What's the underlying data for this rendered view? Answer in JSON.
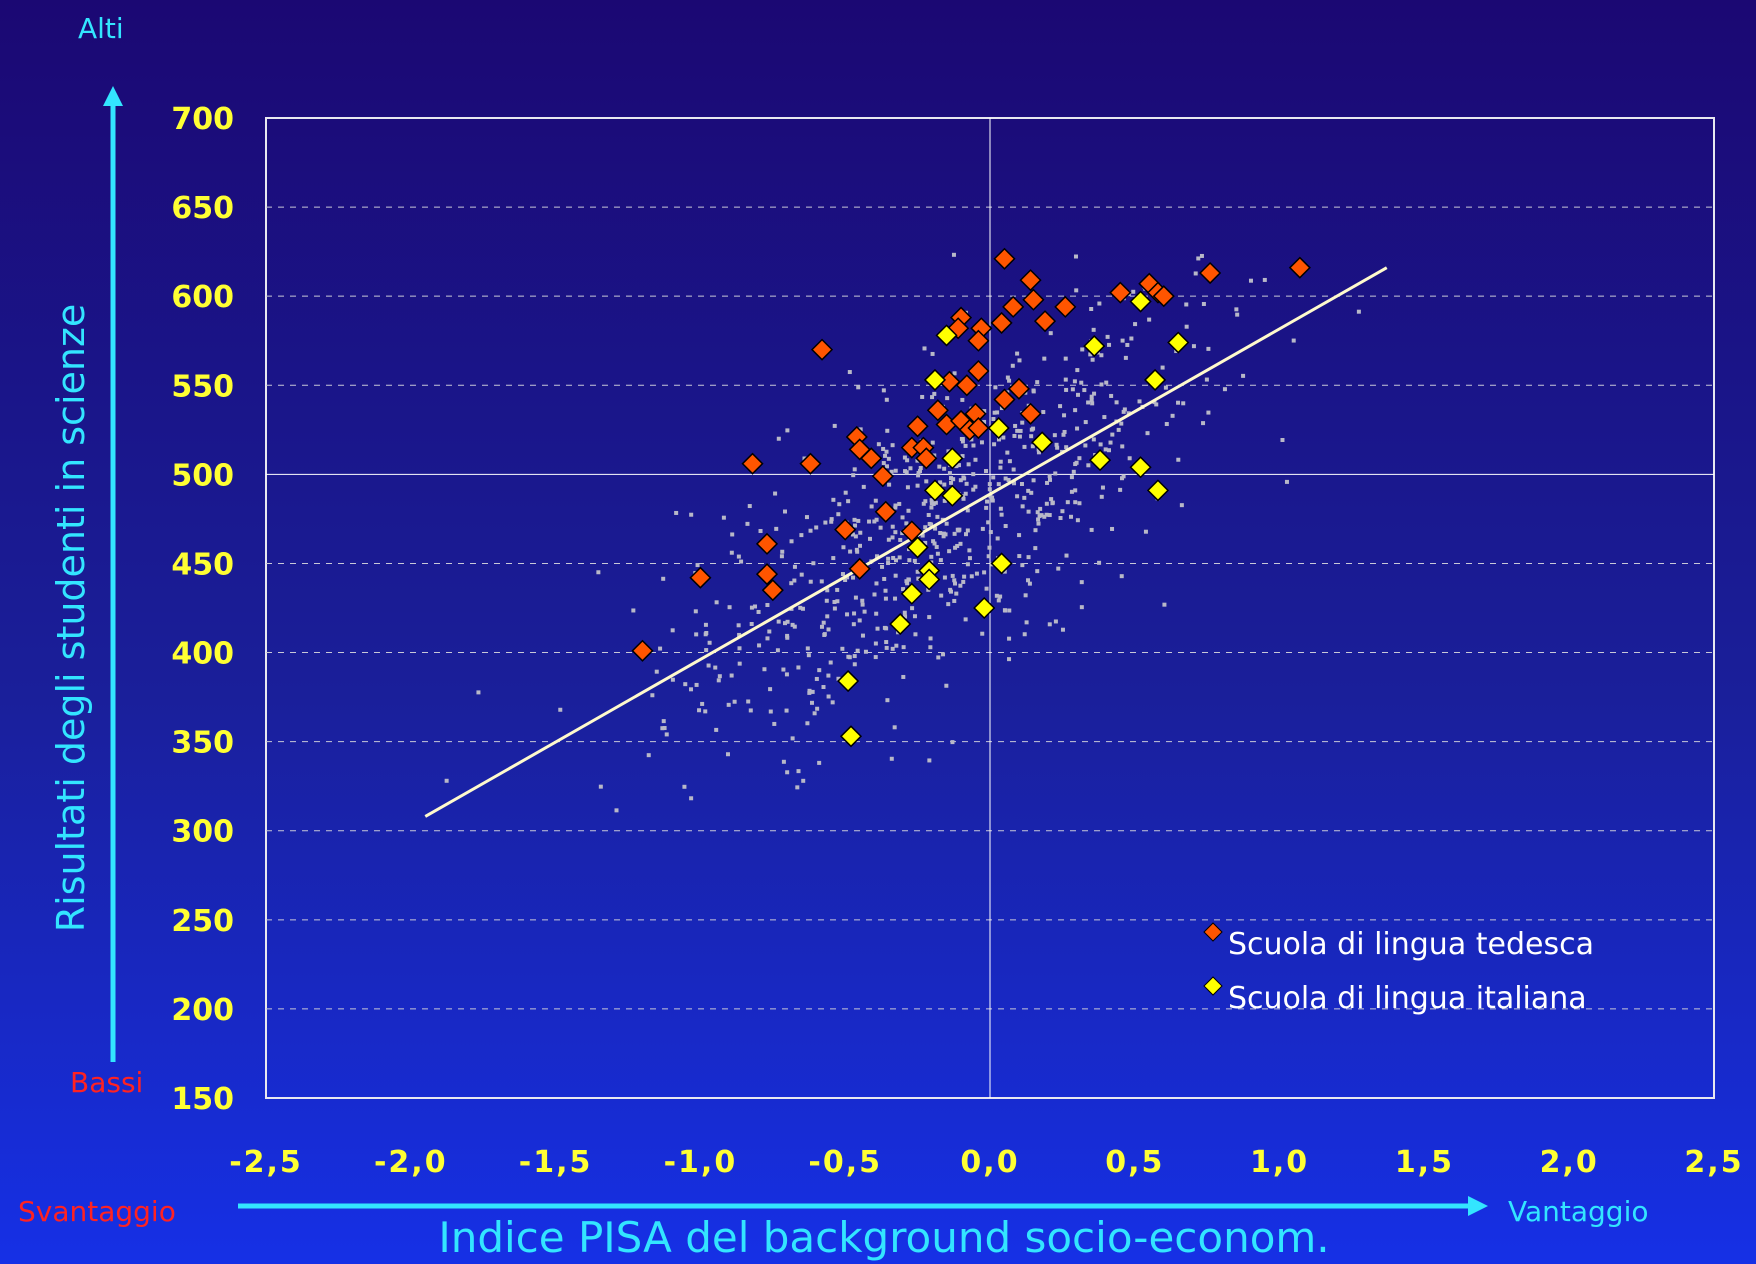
{
  "chart_data": {
    "type": "scatter",
    "xlabel": "Indice PISA del background socio-econom.",
    "ylabel": "Risultati degli studenti in scienze",
    "xlim": [
      -2.5,
      2.5
    ],
    "ylim": [
      150,
      700
    ],
    "x_ticks": [
      "-2,5",
      "-2,0",
      "-1,5",
      "-1,0",
      "-0,5",
      "0,0",
      "0,5",
      "1,0",
      "1,5",
      "2,0",
      "2,5"
    ],
    "y_ticks": [
      "700",
      "650",
      "600",
      "550",
      "500",
      "450",
      "400",
      "350",
      "300",
      "250",
      "200",
      "150"
    ],
    "y_top_label": "Alti",
    "y_bottom_label": "Bassi",
    "x_left_label": "Svantaggio",
    "x_right_label": "Vantaggio",
    "grid": "horizontal dashed",
    "legend_position": "bottom-right",
    "colors": {
      "german": "#ff5500",
      "italian": "#ffff00",
      "background_points": "#b8b8c8",
      "trend_line": "#fffacd",
      "axis_arrows": "#33e5ff",
      "tick_labels": "#ffff33",
      "edge_labels_bad": "#ff2222"
    },
    "trend_line": {
      "x": [
        -1.95,
        1.37
      ],
      "y": [
        308,
        616
      ]
    },
    "series": [
      {
        "name": "Scuola di lingua tedesca",
        "marker": "diamond",
        "points": [
          [
            0.05,
            621
          ],
          [
            0.14,
            609
          ],
          [
            0.08,
            594
          ],
          [
            0.15,
            598
          ],
          [
            0.04,
            585
          ],
          [
            0.19,
            586
          ],
          [
            0.26,
            594
          ],
          [
            -0.1,
            588
          ],
          [
            -0.11,
            582
          ],
          [
            -0.03,
            582
          ],
          [
            -0.04,
            575
          ],
          [
            -0.58,
            570
          ],
          [
            -0.04,
            558
          ],
          [
            -0.14,
            552
          ],
          [
            -0.08,
            550
          ],
          [
            0.05,
            542
          ],
          [
            0.1,
            548
          ],
          [
            -0.18,
            536
          ],
          [
            -0.15,
            528
          ],
          [
            -0.1,
            530
          ],
          [
            -0.05,
            534
          ],
          [
            -0.07,
            525
          ],
          [
            -0.04,
            526
          ],
          [
            0.14,
            534
          ],
          [
            -0.25,
            527
          ],
          [
            -0.46,
            521
          ],
          [
            -0.45,
            514
          ],
          [
            -0.41,
            509
          ],
          [
            -0.27,
            515
          ],
          [
            -0.23,
            515
          ],
          [
            -0.22,
            509
          ],
          [
            -0.37,
            499
          ],
          [
            -0.82,
            506
          ],
          [
            -0.62,
            506
          ],
          [
            -0.36,
            479
          ],
          [
            -0.5,
            469
          ],
          [
            -0.27,
            468
          ],
          [
            -0.77,
            461
          ],
          [
            -0.45,
            447
          ],
          [
            -1.0,
            442
          ],
          [
            -0.77,
            444
          ],
          [
            -0.75,
            435
          ],
          [
            -1.2,
            401
          ],
          [
            0.45,
            602
          ],
          [
            0.55,
            607
          ],
          [
            0.58,
            602
          ],
          [
            0.6,
            600
          ],
          [
            0.76,
            613
          ],
          [
            1.07,
            616
          ]
        ]
      },
      {
        "name": "Scuola di lingua italiana",
        "marker": "diamond",
        "points": [
          [
            -0.15,
            578
          ],
          [
            -0.19,
            553
          ],
          [
            -0.13,
            509
          ],
          [
            -0.19,
            491
          ],
          [
            -0.13,
            488
          ],
          [
            0.03,
            526
          ],
          [
            0.18,
            518
          ],
          [
            0.36,
            572
          ],
          [
            0.52,
            597
          ],
          [
            0.65,
            574
          ],
          [
            0.57,
            553
          ],
          [
            0.38,
            508
          ],
          [
            0.52,
            504
          ],
          [
            0.58,
            491
          ],
          [
            -0.25,
            459
          ],
          [
            -0.21,
            446
          ],
          [
            -0.21,
            441
          ],
          [
            -0.27,
            433
          ],
          [
            -0.31,
            416
          ],
          [
            0.04,
            450
          ],
          [
            -0.02,
            425
          ],
          [
            -0.49,
            384
          ],
          [
            -0.48,
            353
          ]
        ]
      }
    ]
  }
}
